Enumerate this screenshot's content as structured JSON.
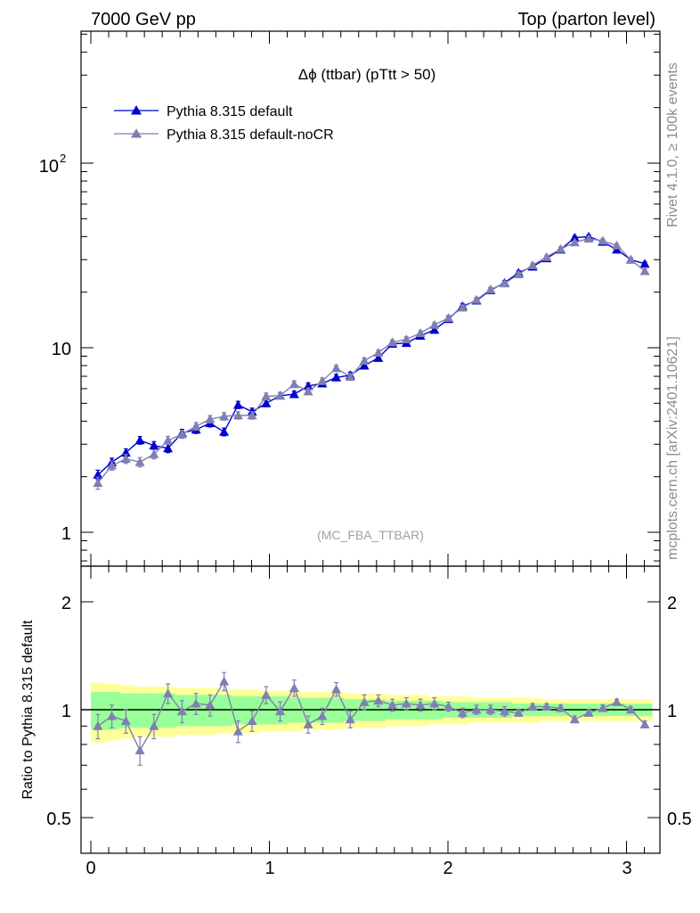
{
  "header": {
    "left": "7000 GeV pp",
    "right": "Top (parton level)"
  },
  "side_labels": {
    "rivet": "Rivet 4.1.0, ≥ 100k events",
    "mcplots": "mcplots.cern.ch [arXiv:2401.10621]"
  },
  "chart_data": [
    {
      "type": "line",
      "panel": "main",
      "title": "Δϕ (ttbar) (pTtt > 50)",
      "watermark": "(MC_FBA_TTBAR)",
      "xlabel": "",
      "ylabel": "",
      "yscale": "log",
      "xlim": [
        -0.05,
        3.2
      ],
      "ylim": [
        0.7,
        500
      ],
      "y_tick_labels": [
        {
          "value": 1,
          "label": "1"
        },
        {
          "value": 10,
          "label": "10"
        },
        {
          "value": 100,
          "label_base": "10",
          "label_exp": "2"
        }
      ],
      "legend": {
        "position": "top-left"
      },
      "x": [
        0.0393,
        0.1178,
        0.1963,
        0.2749,
        0.3534,
        0.432,
        0.5105,
        0.589,
        0.6676,
        0.7461,
        0.8247,
        0.9032,
        0.9817,
        1.0603,
        1.1388,
        1.2174,
        1.2959,
        1.3744,
        1.453,
        1.5315,
        1.6101,
        1.6886,
        1.7671,
        1.8457,
        1.9242,
        2.0028,
        2.0813,
        2.1598,
        2.2384,
        2.3169,
        2.3955,
        2.474,
        2.5525,
        2.6311,
        2.7096,
        2.7882,
        2.8667,
        2.9452,
        3.0238,
        3.1023
      ],
      "series": [
        {
          "name": "Pythia 8.315 default",
          "color": "#0000cc",
          "marker": "filled-triangle",
          "values": [
            2.05,
            2.4,
            2.7,
            3.15,
            2.95,
            2.85,
            3.45,
            3.6,
            3.9,
            3.5,
            4.9,
            4.5,
            5.0,
            5.5,
            5.6,
            6.2,
            6.4,
            6.9,
            7.1,
            8.0,
            8.8,
            10.5,
            10.6,
            11.6,
            12.5,
            14.3,
            16.8,
            18.0,
            20.5,
            22.5,
            25.5,
            27.5,
            30.5,
            34.0,
            39.5,
            40.0,
            37.5,
            34.0,
            30.0,
            28.5
          ],
          "errors": [
            0.12,
            0.12,
            0.13,
            0.15,
            0.15,
            0.15,
            0.16,
            0.17,
            0.18,
            0.17,
            0.22,
            0.2,
            0.2,
            0.22,
            0.22,
            0.24,
            0.24,
            0.26,
            0.27,
            0.3,
            0.3,
            0.35,
            0.36,
            0.38,
            0.4,
            0.45,
            0.5,
            0.5,
            0.55,
            0.6,
            0.65,
            0.7,
            0.75,
            0.8,
            0.9,
            0.9,
            0.85,
            0.8,
            0.75,
            0.7
          ]
        },
        {
          "name": "Pythia 8.315 default-noCR",
          "color": "#7f7fb2",
          "marker": "filled-triangle",
          "values": [
            1.85,
            2.3,
            2.5,
            2.4,
            2.65,
            3.15,
            3.4,
            3.75,
            4.1,
            4.25,
            4.3,
            4.3,
            5.45,
            5.5,
            6.35,
            5.8,
            6.6,
            7.75,
            6.95,
            8.5,
            9.4,
            10.7,
            11.1,
            12.0,
            13.3,
            14.5,
            16.5,
            18.2,
            20.7,
            22.3,
            25.0,
            28.0,
            31.0,
            34.3,
            37.2,
            39.0,
            38.0,
            35.8,
            30.0,
            26.0
          ],
          "errors": [
            0.14,
            0.13,
            0.14,
            0.14,
            0.15,
            0.16,
            0.17,
            0.18,
            0.19,
            0.2,
            0.2,
            0.2,
            0.23,
            0.23,
            0.25,
            0.24,
            0.26,
            0.28,
            0.27,
            0.3,
            0.32,
            0.35,
            0.36,
            0.38,
            0.4,
            0.45,
            0.5,
            0.52,
            0.56,
            0.6,
            0.65,
            0.7,
            0.75,
            0.8,
            0.85,
            0.9,
            0.85,
            0.8,
            0.75,
            0.7
          ]
        }
      ]
    },
    {
      "type": "line",
      "panel": "ratio",
      "xlabel": "",
      "ylabel": "Ratio to Pythia 8.315 default",
      "yscale": "log",
      "xlim": [
        -0.05,
        3.2
      ],
      "ylim": [
        0.4,
        2.5
      ],
      "x_tick_labels": [
        {
          "value": 0,
          "label": "0"
        },
        {
          "value": 1,
          "label": "1"
        },
        {
          "value": 2,
          "label": "2"
        },
        {
          "value": 3,
          "label": "3"
        }
      ],
      "y_tick_labels": [
        {
          "value": 0.5,
          "label": "0.5"
        },
        {
          "value": 1,
          "label": "1"
        },
        {
          "value": 2,
          "label": "2"
        }
      ],
      "reference_line": 1,
      "bands": {
        "x": [
          0.0393,
          0.1178,
          0.1963,
          0.2749,
          0.3534,
          0.432,
          0.5105,
          0.589,
          0.6676,
          0.7461,
          0.8247,
          0.9032,
          0.9817,
          1.0603,
          1.1388,
          1.2174,
          1.2959,
          1.3744,
          1.453,
          1.5315,
          1.6101,
          1.6886,
          1.7671,
          1.8457,
          1.9242,
          2.0028,
          2.0813,
          2.1598,
          2.2384,
          2.3169,
          2.3955,
          2.474,
          2.5525,
          2.6311,
          2.7096,
          2.7882,
          2.8667,
          2.9452,
          3.0238,
          3.1023
        ],
        "inner_halfwidth": [
          0.12,
          0.12,
          0.11,
          0.11,
          0.11,
          0.11,
          0.1,
          0.1,
          0.1,
          0.1,
          0.09,
          0.09,
          0.09,
          0.09,
          0.08,
          0.08,
          0.08,
          0.08,
          0.07,
          0.07,
          0.07,
          0.06,
          0.06,
          0.06,
          0.06,
          0.05,
          0.05,
          0.05,
          0.05,
          0.05,
          0.04,
          0.04,
          0.04,
          0.04,
          0.04,
          0.04,
          0.04,
          0.04,
          0.04,
          0.04
        ],
        "outer_halfwidth": [
          0.19,
          0.18,
          0.17,
          0.16,
          0.16,
          0.16,
          0.15,
          0.15,
          0.15,
          0.14,
          0.14,
          0.14,
          0.13,
          0.13,
          0.13,
          0.12,
          0.12,
          0.12,
          0.11,
          0.11,
          0.11,
          0.1,
          0.1,
          0.1,
          0.09,
          0.09,
          0.09,
          0.08,
          0.08,
          0.08,
          0.08,
          0.08,
          0.07,
          0.07,
          0.07,
          0.07,
          0.07,
          0.07,
          0.07,
          0.07
        ],
        "inner_color": "#99ff99",
        "outer_color": "#ffff99"
      },
      "series": [
        {
          "name": "Pythia 8.315 default-noCR",
          "color": "#7f7fb2",
          "marker": "filled-triangle",
          "values": [
            0.9,
            0.96,
            0.93,
            0.77,
            0.9,
            1.11,
            0.99,
            1.04,
            1.03,
            1.2,
            0.87,
            0.93,
            1.1,
            0.99,
            1.15,
            0.91,
            0.96,
            1.14,
            0.94,
            1.05,
            1.06,
            1.03,
            1.04,
            1.03,
            1.04,
            1.02,
            0.98,
            1.0,
            1.0,
            0.99,
            0.98,
            1.02,
            1.02,
            1.01,
            0.94,
            0.98,
            1.01,
            1.05,
            1.0,
            0.91
          ],
          "errors": [
            0.07,
            0.07,
            0.07,
            0.07,
            0.07,
            0.07,
            0.07,
            0.07,
            0.07,
            0.07,
            0.06,
            0.06,
            0.06,
            0.06,
            0.06,
            0.05,
            0.05,
            0.05,
            0.05,
            0.05,
            0.04,
            0.04,
            0.04,
            0.04,
            0.04,
            0.03,
            0.03,
            0.03,
            0.03,
            0.03,
            0.02,
            0.02,
            0.02,
            0.02,
            0.02,
            0.02,
            0.02,
            0.02,
            0.02,
            0.02
          ]
        }
      ]
    }
  ]
}
